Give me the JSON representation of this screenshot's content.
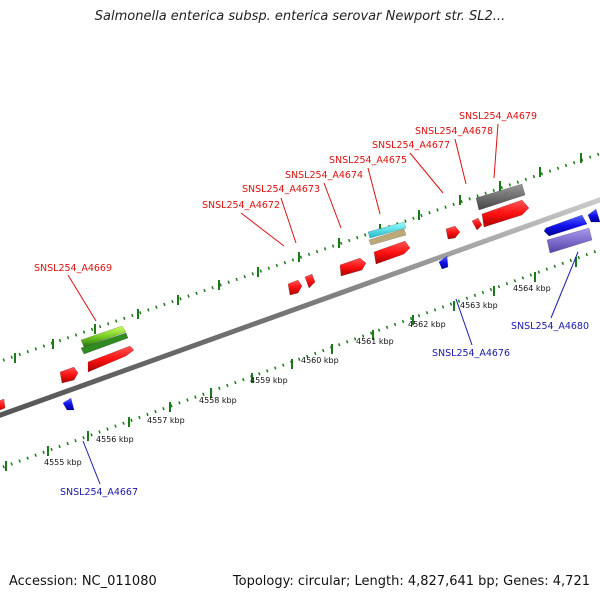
{
  "title": "Salmonella enterica subsp. enterica serovar Newport str. SL2...",
  "footer": {
    "accession": "Accession: NC_011080",
    "summary": "Topology: circular; Length: 4,827,641 bp; Genes: 4,721"
  },
  "scale_labels": [
    "4555 kbp",
    "4556 kbp",
    "4557 kbp",
    "4558 kbp",
    "4559 kbp",
    "4560 kbp",
    "4561 kbp",
    "4562 kbp",
    "4563 kbp",
    "4564 kbp"
  ],
  "upper_gene_labels": [
    "SNSL254_A4669",
    "SNSL254_A4672",
    "SNSL254_A4673",
    "SNSL254_A4674",
    "SNSL254_A4675",
    "SNSL254_A4677",
    "SNSL254_A4678",
    "SNSL254_A4679"
  ],
  "lower_gene_labels": [
    "SNSL254_A4667",
    "SNSL254_A4676",
    "SNSL254_A4680"
  ],
  "colors": {
    "forward_label": "#dd1111",
    "reverse_label": "#1a1aaa",
    "backbone": "#888888",
    "tick": "#1a7a1a",
    "feature_red": "#ff1111",
    "feature_blue": "#1111ee",
    "feature_green": "#55bb22",
    "feature_cyan": "#33dddd",
    "feature_tan": "#bbaa77",
    "feature_gray": "#666666",
    "feature_violet": "#7766cc"
  }
}
